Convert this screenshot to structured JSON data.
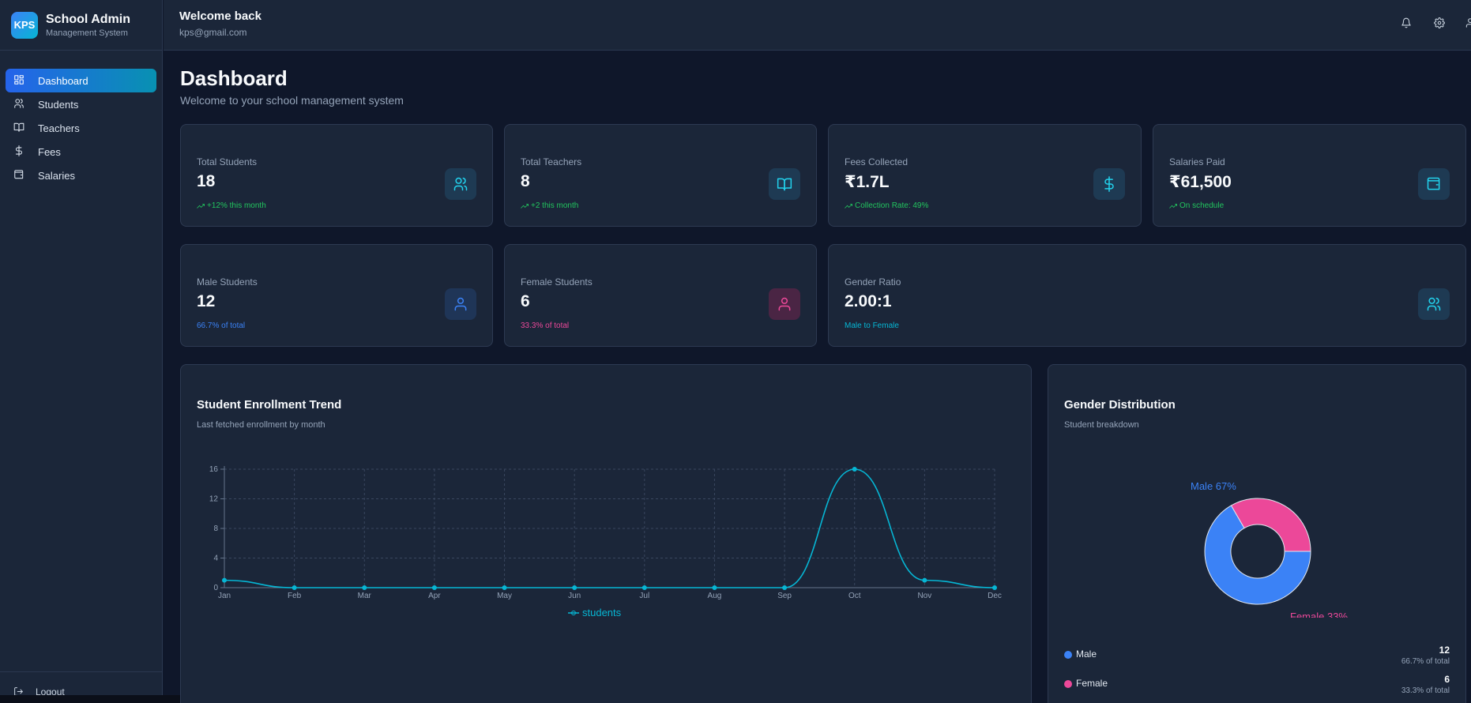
{
  "brand": {
    "logo": "KPS",
    "title": "School Admin",
    "subtitle": "Management System"
  },
  "sidebar": {
    "items": [
      {
        "label": "Dashboard",
        "icon": "dashboard-icon",
        "active": true
      },
      {
        "label": "Students",
        "icon": "users-icon"
      },
      {
        "label": "Teachers",
        "icon": "book-open-icon"
      },
      {
        "label": "Fees",
        "icon": "dollar-icon"
      },
      {
        "label": "Salaries",
        "icon": "wallet-icon"
      }
    ],
    "logout_label": "Logout"
  },
  "header": {
    "title": "Welcome back",
    "email": "kps@gmail.com"
  },
  "page": {
    "title": "Dashboard",
    "subtitle": "Welcome to your school management system"
  },
  "stats": [
    {
      "title": "Total Students",
      "value": "18",
      "note": "+12% this month",
      "icon": "users-icon",
      "note_color": "#22c55e"
    },
    {
      "title": "Total Teachers",
      "value": "8",
      "note": "+2 this month",
      "icon": "book-open-icon",
      "note_color": "#22c55e"
    },
    {
      "title": "Fees Collected",
      "value": "₹1.7L",
      "note": "Collection Rate: 49%",
      "icon": "dollar-icon",
      "note_color": "#22c55e"
    },
    {
      "title": "Salaries Paid",
      "value": "₹61,500",
      "note": "On schedule",
      "icon": "wallet-icon",
      "note_color": "#22c55e"
    }
  ],
  "gender_stats": [
    {
      "title": "Male Students",
      "value": "12",
      "note": "66.7% of total",
      "icon": "user-icon",
      "note_color": "#3b82f6"
    },
    {
      "title": "Female Students",
      "value": "6",
      "note": "33.3% of total",
      "icon": "user-icon",
      "note_color": "#ec4899"
    },
    {
      "title": "Gender Ratio",
      "value": "2.00:1",
      "note": "Male to Female",
      "icon": "users-icon",
      "note_color": "#06b6d4"
    }
  ],
  "enrollment": {
    "title": "Student Enrollment Trend",
    "subtitle": "Last fetched enrollment by month"
  },
  "gender_panel": {
    "title": "Gender Distribution",
    "subtitle": "Student breakdown",
    "legend": [
      {
        "name": "Male",
        "value": "12",
        "pct": "66.7% of total"
      },
      {
        "name": "Female",
        "value": "6",
        "pct": "33.3% of total"
      }
    ]
  },
  "chart_data": [
    {
      "type": "line",
      "x": [
        "Jan",
        "Feb",
        "Mar",
        "Apr",
        "May",
        "Jun",
        "Jul",
        "Aug",
        "Sep",
        "Oct",
        "Nov",
        "Dec"
      ],
      "series": [
        {
          "name": "students",
          "values": [
            1,
            0,
            0,
            0,
            0,
            0,
            0,
            0,
            0,
            16,
            1,
            0
          ],
          "color": "#06b6d4"
        }
      ],
      "yticks": [
        "0",
        "4",
        "8",
        "12",
        "16"
      ],
      "ylim": [
        0,
        16
      ],
      "grid": true,
      "legend": "bottom"
    },
    {
      "type": "pie",
      "categories": [
        "Male",
        "Female"
      ],
      "values": [
        12,
        6
      ],
      "labels": [
        "Male 67%",
        "Female 33%"
      ],
      "colors": [
        "#3b82f6",
        "#ec4899"
      ]
    }
  ]
}
